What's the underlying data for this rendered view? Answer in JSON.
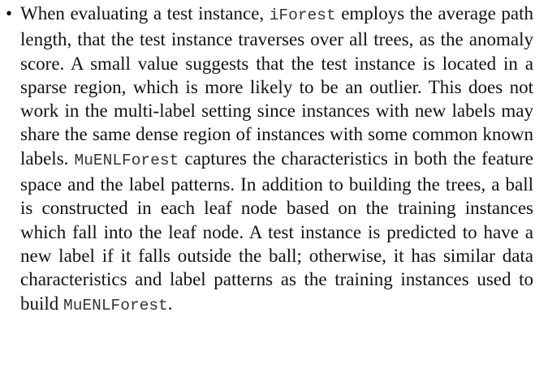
{
  "item": {
    "segments": [
      {
        "text": "When evaluating a test instance, ",
        "code": false
      },
      {
        "text": "iForest",
        "code": true
      },
      {
        "text": " employs the average path length, that the test instance traverses over all trees, as the anomaly score. A small value suggests that the test instance is located in a sparse region, which is more likely to be an outlier. This does not work in the multi-label setting since instances with new labels may share the same dense region of instances with some common known labels. ",
        "code": false
      },
      {
        "text": "MuENLForest",
        "code": true
      },
      {
        "text": " captures the characteristics in both the feature space and the label patterns. In addition to building the trees, a ball is constructed in each leaf node based on the training instances which fall into the leaf node. A test instance is predicted to have a new label if it falls outside the ball; otherwise, it has similar data characteristics and label patterns as the training instances used to build ",
        "code": false
      },
      {
        "text": "MuENLForest",
        "code": true
      },
      {
        "text": ".",
        "code": false
      }
    ]
  }
}
